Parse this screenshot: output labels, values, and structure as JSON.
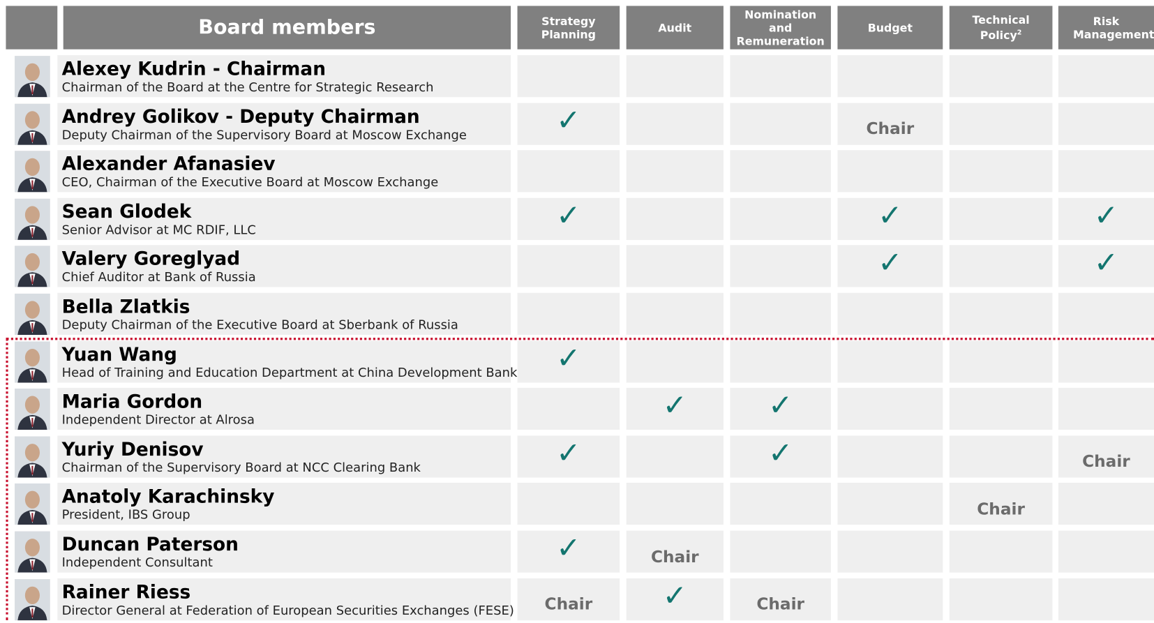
{
  "header": {
    "title": "Board members",
    "committees": [
      {
        "label": "Strategy Planning"
      },
      {
        "label": "Audit"
      },
      {
        "label": "Nomination and Remuneration"
      },
      {
        "label": "Budget"
      },
      {
        "label": "Technical Policy",
        "footnote": "2"
      },
      {
        "label": "Risk Management"
      }
    ]
  },
  "rows": [
    {
      "name": "Alexey Kudrin - Chairman",
      "position": "Chairman of the Board at the Centre for Strategic Research",
      "cells": [
        null,
        null,
        null,
        null,
        null,
        null
      ]
    },
    {
      "name": "Andrey Golikov - Deputy Chairman",
      "position": "Deputy Chairman of the Supervisory Board at Moscow Exchange",
      "cells": [
        "✓",
        null,
        null,
        "Chair",
        null,
        null
      ]
    },
    {
      "name": "Alexander Afanasiev",
      "position": "CEO, Chairman of the Executive Board at Moscow Exchange",
      "cells": [
        null,
        null,
        null,
        null,
        null,
        null
      ]
    },
    {
      "name": "Sean Glodek",
      "position": "Senior Advisor at MC RDIF, LLC",
      "cells": [
        "✓",
        null,
        null,
        "✓",
        null,
        "✓"
      ]
    },
    {
      "name": "Valery Goreglyad",
      "position": "Chief Auditor at Bank of Russia",
      "cells": [
        null,
        null,
        null,
        "✓",
        null,
        "✓"
      ]
    },
    {
      "name": "Bella Zlatkis",
      "position": "Deputy Chairman of the Executive Board at Sberbank of Russia",
      "cells": [
        null,
        null,
        null,
        null,
        null,
        null
      ]
    },
    {
      "name": "Yuan Wang",
      "position": "Head of Training and Education Department at China Development Bank",
      "cells": [
        "✓",
        null,
        null,
        null,
        null,
        null
      ]
    },
    {
      "name": "Maria Gordon",
      "position": "Independent Director at Alrosa",
      "cells": [
        null,
        "✓",
        "✓",
        null,
        null,
        null
      ]
    },
    {
      "name": "Yuriy Denisov",
      "position": "Chairman of the Supervisory Board at NCC Clearing Bank",
      "cells": [
        "✓",
        null,
        "✓",
        null,
        null,
        "Chair"
      ]
    },
    {
      "name": "Anatoly Karachinsky",
      "position": "President, IBS Group",
      "cells": [
        null,
        null,
        null,
        null,
        "Chair",
        null
      ]
    },
    {
      "name": "Duncan Paterson",
      "position": "Independent Consultant",
      "cells": [
        "✓",
        "Chair",
        null,
        null,
        null,
        null
      ]
    },
    {
      "name": "Rainer Riess",
      "position": "Director General at Federation of European Securities Exchanges (FESE)",
      "cells": [
        "Chair",
        "✓",
        "Chair",
        null,
        null,
        null
      ]
    }
  ]
}
